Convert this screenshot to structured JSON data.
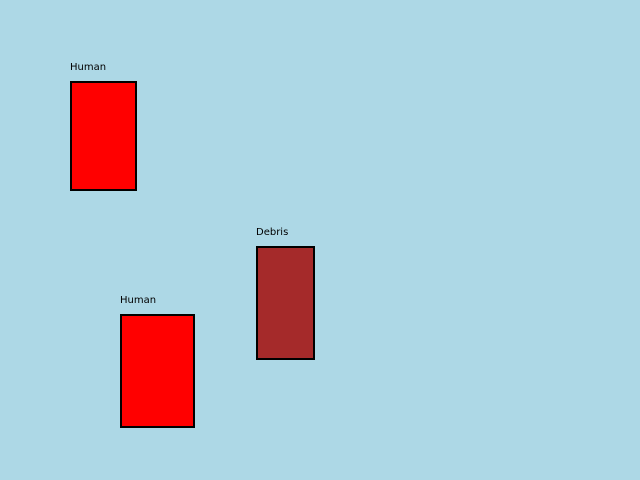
{
  "scene": {
    "background_color": "#add8e6"
  },
  "entities": [
    {
      "label": "Human",
      "fill_color": "#ff0000"
    },
    {
      "label": "Debris",
      "fill_color": "#a52a2a"
    },
    {
      "label": "Human",
      "fill_color": "#ff0000"
    }
  ]
}
